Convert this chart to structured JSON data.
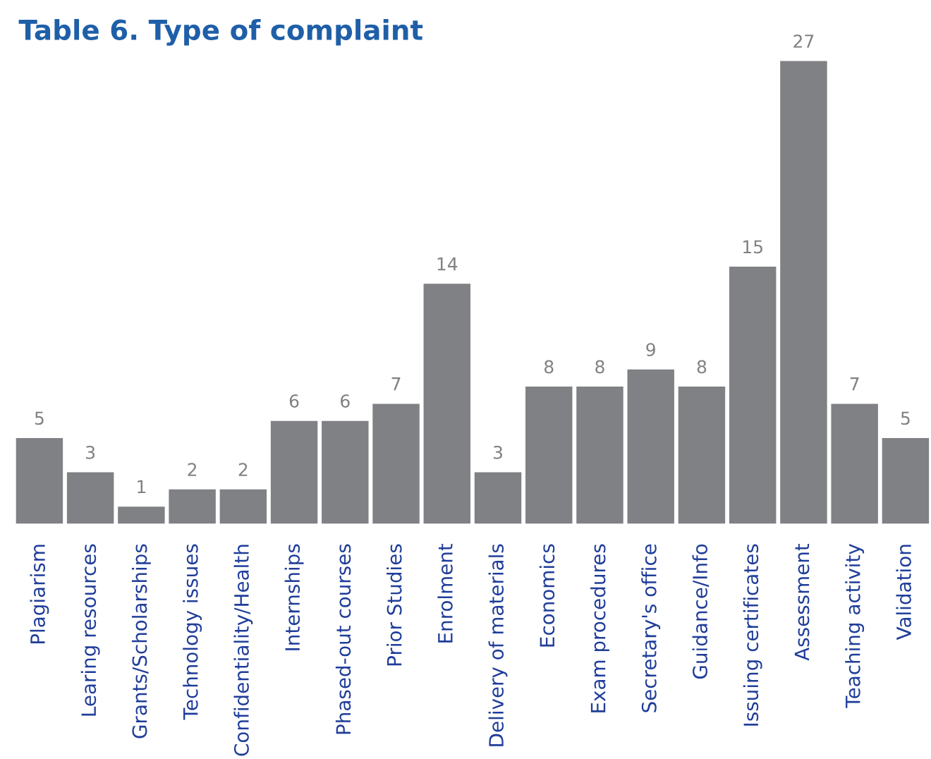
{
  "chart_data": {
    "type": "bar",
    "title": "Table 6. Type of complaint",
    "categories": [
      "Plagiarism",
      "Learing resources",
      "Grants/Scholarships",
      "Technology issues",
      "Confidentiality/Health",
      "Internships",
      "Phased-out courses",
      "Prior Studies",
      "Enrolment",
      "Delivery of materials",
      "Economics",
      "Exam procedures",
      "Secretary's office",
      "Guidance/Info",
      "Issuing certificates",
      "Assessment",
      "Teaching activity",
      "Validation"
    ],
    "values": [
      5,
      3,
      1,
      2,
      2,
      6,
      6,
      7,
      14,
      3,
      8,
      8,
      9,
      8,
      15,
      27,
      7,
      5
    ],
    "color": "#808184",
    "data_labels": true,
    "grid": false,
    "legend": false
  }
}
